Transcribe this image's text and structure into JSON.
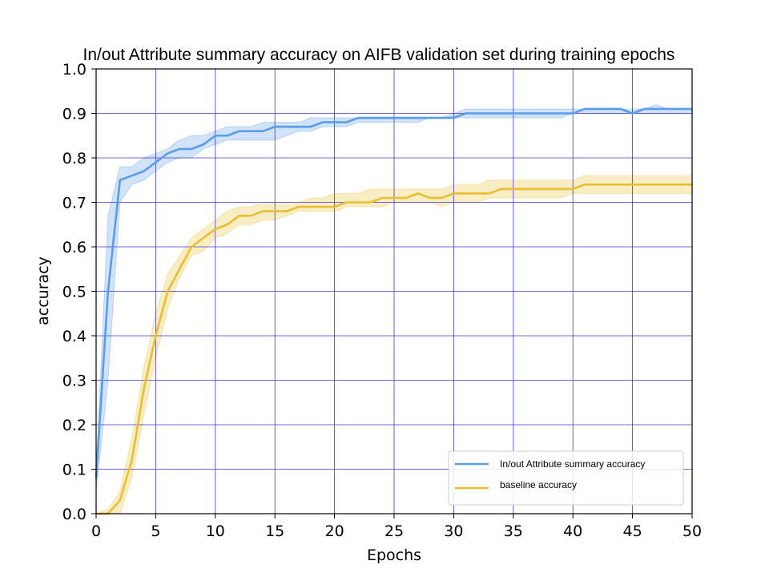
{
  "chart_data": {
    "type": "line",
    "title": "In/out Attribute summary accuracy on AIFB validation set during training epochs",
    "xlabel": "Epochs",
    "ylabel": "accuracy",
    "xlim": [
      0,
      50
    ],
    "ylim": [
      0,
      1.0
    ],
    "xticks": [
      0,
      5,
      10,
      15,
      20,
      25,
      30,
      35,
      40,
      45,
      50
    ],
    "yticks": [
      0.0,
      0.1,
      0.2,
      0.3,
      0.4,
      0.5,
      0.6,
      0.7,
      0.8,
      0.9,
      1.0
    ],
    "xtick_labels": [
      "0",
      "5",
      "10",
      "15",
      "20",
      "25",
      "30",
      "35",
      "40",
      "45",
      "50"
    ],
    "ytick_labels": [
      "0.0",
      "0.1",
      "0.2",
      "0.3",
      "0.4",
      "0.5",
      "0.6",
      "0.7",
      "0.8",
      "0.9",
      "1.0"
    ],
    "grid": true,
    "grid_color": "#3a3ad6",
    "legend_position": "lower-right",
    "x": [
      0,
      1,
      2,
      3,
      4,
      5,
      6,
      7,
      8,
      9,
      10,
      11,
      12,
      13,
      14,
      15,
      16,
      17,
      18,
      19,
      20,
      21,
      22,
      23,
      24,
      25,
      26,
      27,
      28,
      29,
      30,
      31,
      32,
      33,
      34,
      35,
      36,
      37,
      38,
      39,
      40,
      41,
      42,
      43,
      44,
      45,
      46,
      47,
      48,
      49,
      50
    ],
    "series": [
      {
        "name": "In/out Attribute summary accuracy",
        "color": "#5b9be8",
        "values": [
          0.08,
          0.5,
          0.75,
          0.76,
          0.77,
          0.79,
          0.81,
          0.82,
          0.82,
          0.83,
          0.85,
          0.85,
          0.86,
          0.86,
          0.86,
          0.87,
          0.87,
          0.87,
          0.87,
          0.88,
          0.88,
          0.88,
          0.89,
          0.89,
          0.89,
          0.89,
          0.89,
          0.89,
          0.89,
          0.89,
          0.89,
          0.9,
          0.9,
          0.9,
          0.9,
          0.9,
          0.9,
          0.9,
          0.9,
          0.9,
          0.9,
          0.91,
          0.91,
          0.91,
          0.91,
          0.9,
          0.91,
          0.91,
          0.91,
          0.91,
          0.91
        ],
        "lower": [
          0.05,
          0.3,
          0.7,
          0.74,
          0.75,
          0.77,
          0.79,
          0.8,
          0.8,
          0.82,
          0.83,
          0.84,
          0.84,
          0.84,
          0.84,
          0.84,
          0.85,
          0.86,
          0.86,
          0.87,
          0.87,
          0.87,
          0.88,
          0.88,
          0.88,
          0.88,
          0.88,
          0.88,
          0.89,
          0.89,
          0.89,
          0.89,
          0.89,
          0.89,
          0.89,
          0.89,
          0.89,
          0.89,
          0.89,
          0.89,
          0.9,
          0.9,
          0.9,
          0.9,
          0.9,
          0.9,
          0.9,
          0.9,
          0.9,
          0.9,
          0.9
        ],
        "upper": [
          0.1,
          0.67,
          0.78,
          0.78,
          0.8,
          0.81,
          0.82,
          0.84,
          0.85,
          0.85,
          0.86,
          0.87,
          0.87,
          0.87,
          0.88,
          0.88,
          0.88,
          0.88,
          0.89,
          0.89,
          0.89,
          0.89,
          0.89,
          0.89,
          0.89,
          0.89,
          0.89,
          0.89,
          0.89,
          0.89,
          0.9,
          0.91,
          0.91,
          0.91,
          0.91,
          0.91,
          0.91,
          0.91,
          0.91,
          0.91,
          0.91,
          0.91,
          0.91,
          0.91,
          0.91,
          0.91,
          0.91,
          0.92,
          0.91,
          0.91,
          0.91
        ]
      },
      {
        "name": "baseline accuracy",
        "color": "#e8bf30",
        "values": [
          0.0,
          0.0,
          0.03,
          0.12,
          0.28,
          0.4,
          0.5,
          0.55,
          0.6,
          0.62,
          0.64,
          0.65,
          0.67,
          0.67,
          0.68,
          0.68,
          0.68,
          0.69,
          0.69,
          0.69,
          0.69,
          0.7,
          0.7,
          0.7,
          0.71,
          0.71,
          0.71,
          0.72,
          0.71,
          0.71,
          0.72,
          0.72,
          0.72,
          0.72,
          0.73,
          0.73,
          0.73,
          0.73,
          0.73,
          0.73,
          0.73,
          0.74,
          0.74,
          0.74,
          0.74,
          0.74,
          0.74,
          0.74,
          0.74,
          0.74,
          0.74
        ],
        "lower": [
          0.0,
          0.0,
          0.0,
          0.08,
          0.22,
          0.35,
          0.46,
          0.53,
          0.58,
          0.59,
          0.62,
          0.63,
          0.65,
          0.65,
          0.66,
          0.66,
          0.67,
          0.68,
          0.68,
          0.68,
          0.68,
          0.69,
          0.69,
          0.69,
          0.69,
          0.7,
          0.7,
          0.7,
          0.7,
          0.69,
          0.7,
          0.7,
          0.7,
          0.71,
          0.71,
          0.71,
          0.71,
          0.71,
          0.71,
          0.71,
          0.72,
          0.72,
          0.72,
          0.72,
          0.72,
          0.72,
          0.72,
          0.72,
          0.72,
          0.72,
          0.72
        ],
        "upper": [
          0.0,
          0.01,
          0.05,
          0.17,
          0.33,
          0.45,
          0.54,
          0.58,
          0.62,
          0.64,
          0.66,
          0.68,
          0.69,
          0.69,
          0.7,
          0.7,
          0.7,
          0.7,
          0.71,
          0.71,
          0.72,
          0.72,
          0.72,
          0.73,
          0.73,
          0.73,
          0.73,
          0.73,
          0.73,
          0.73,
          0.74,
          0.74,
          0.74,
          0.75,
          0.75,
          0.75,
          0.75,
          0.75,
          0.75,
          0.75,
          0.75,
          0.76,
          0.76,
          0.76,
          0.76,
          0.76,
          0.76,
          0.76,
          0.76,
          0.76,
          0.76
        ]
      }
    ]
  }
}
